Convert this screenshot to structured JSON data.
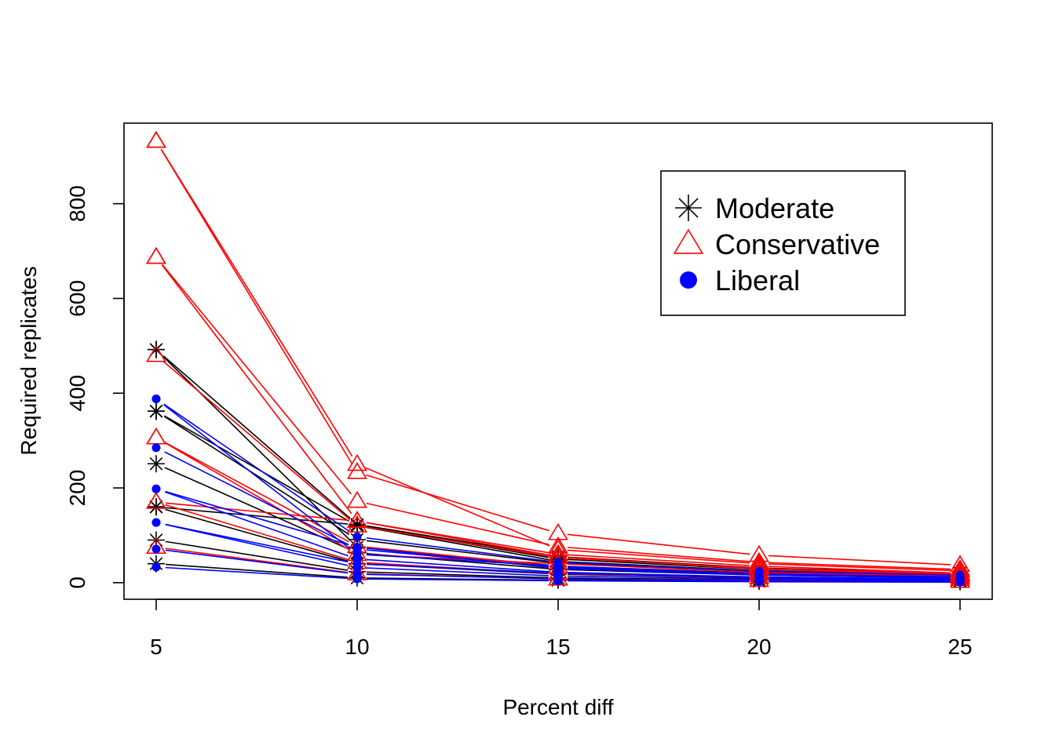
{
  "chart_data": {
    "type": "line",
    "title": "",
    "xlabel": "Percent diff",
    "ylabel": "Required replicates",
    "x": [
      5,
      10,
      15,
      20,
      25
    ],
    "xlim": [
      4.2,
      25.8
    ],
    "ylim": [
      -35,
      970
    ],
    "x_ticks": [
      5,
      10,
      15,
      20,
      25
    ],
    "y_ticks": [
      0,
      200,
      400,
      600,
      800
    ],
    "grid": false,
    "legend_position": "top-right",
    "legend": [
      {
        "key": "moderate",
        "label": "Moderate",
        "color": "#000000",
        "marker": "asterisk"
      },
      {
        "key": "conservative",
        "label": "Conservative",
        "color": "#ff0000",
        "marker": "triangle"
      },
      {
        "key": "liberal",
        "label": "Liberal",
        "color": "#0000ff",
        "marker": "dot"
      }
    ],
    "series": [
      {
        "group": "moderate",
        "values": [
          492,
          123,
          55,
          31,
          20
        ]
      },
      {
        "group": "moderate",
        "values": [
          362,
          91,
          41,
          23,
          15
        ]
      },
      {
        "group": "moderate",
        "values": [
          251,
          63,
          28,
          16,
          10
        ]
      },
      {
        "group": "moderate",
        "values": [
          160,
          40,
          18,
          10,
          7
        ]
      },
      {
        "group": "moderate",
        "values": [
          90,
          23,
          10,
          6,
          4
        ]
      },
      {
        "group": "moderate",
        "values": [
          40,
          10,
          5,
          3,
          2
        ]
      },
      {
        "group": "moderate",
        "values": [
          492,
          75,
          35,
          20,
          12
        ]
      },
      {
        "group": "moderate",
        "values": [
          362,
          120,
          45,
          25,
          15
        ]
      },
      {
        "group": "moderate",
        "values": [
          160,
          122,
          50,
          28,
          16
        ]
      },
      {
        "group": "conservative",
        "values": [
          932,
          233,
          104,
          58,
          37
        ]
      },
      {
        "group": "conservative",
        "values": [
          687,
          172,
          76,
          43,
          28
        ]
      },
      {
        "group": "conservative",
        "values": [
          480,
          120,
          53,
          30,
          19
        ]
      },
      {
        "group": "conservative",
        "values": [
          306,
          77,
          34,
          19,
          12
        ]
      },
      {
        "group": "conservative",
        "values": [
          170,
          43,
          19,
          11,
          7
        ]
      },
      {
        "group": "conservative",
        "values": [
          75,
          19,
          8,
          5,
          3
        ]
      },
      {
        "group": "conservative",
        "values": [
          932,
          250,
          70,
          40,
          25
        ]
      },
      {
        "group": "conservative",
        "values": [
          687,
          130,
          60,
          35,
          20
        ]
      },
      {
        "group": "conservative",
        "values": [
          306,
          60,
          40,
          22,
          14
        ]
      },
      {
        "group": "conservative",
        "values": [
          170,
          130,
          55,
          28,
          17
        ]
      },
      {
        "group": "liberal",
        "values": [
          388,
          97,
          43,
          24,
          16
        ]
      },
      {
        "group": "liberal",
        "values": [
          285,
          71,
          32,
          18,
          11
        ]
      },
      {
        "group": "liberal",
        "values": [
          198,
          50,
          22,
          12,
          8
        ]
      },
      {
        "group": "liberal",
        "values": [
          127,
          32,
          14,
          8,
          5
        ]
      },
      {
        "group": "liberal",
        "values": [
          71,
          18,
          8,
          4,
          3
        ]
      },
      {
        "group": "liberal",
        "values": [
          33,
          8,
          4,
          2,
          1
        ]
      },
      {
        "group": "liberal",
        "values": [
          388,
          60,
          35,
          18,
          12
        ]
      },
      {
        "group": "liberal",
        "values": [
          198,
          75,
          30,
          16,
          10
        ]
      },
      {
        "group": "liberal",
        "values": [
          127,
          40,
          20,
          11,
          7
        ]
      }
    ]
  }
}
